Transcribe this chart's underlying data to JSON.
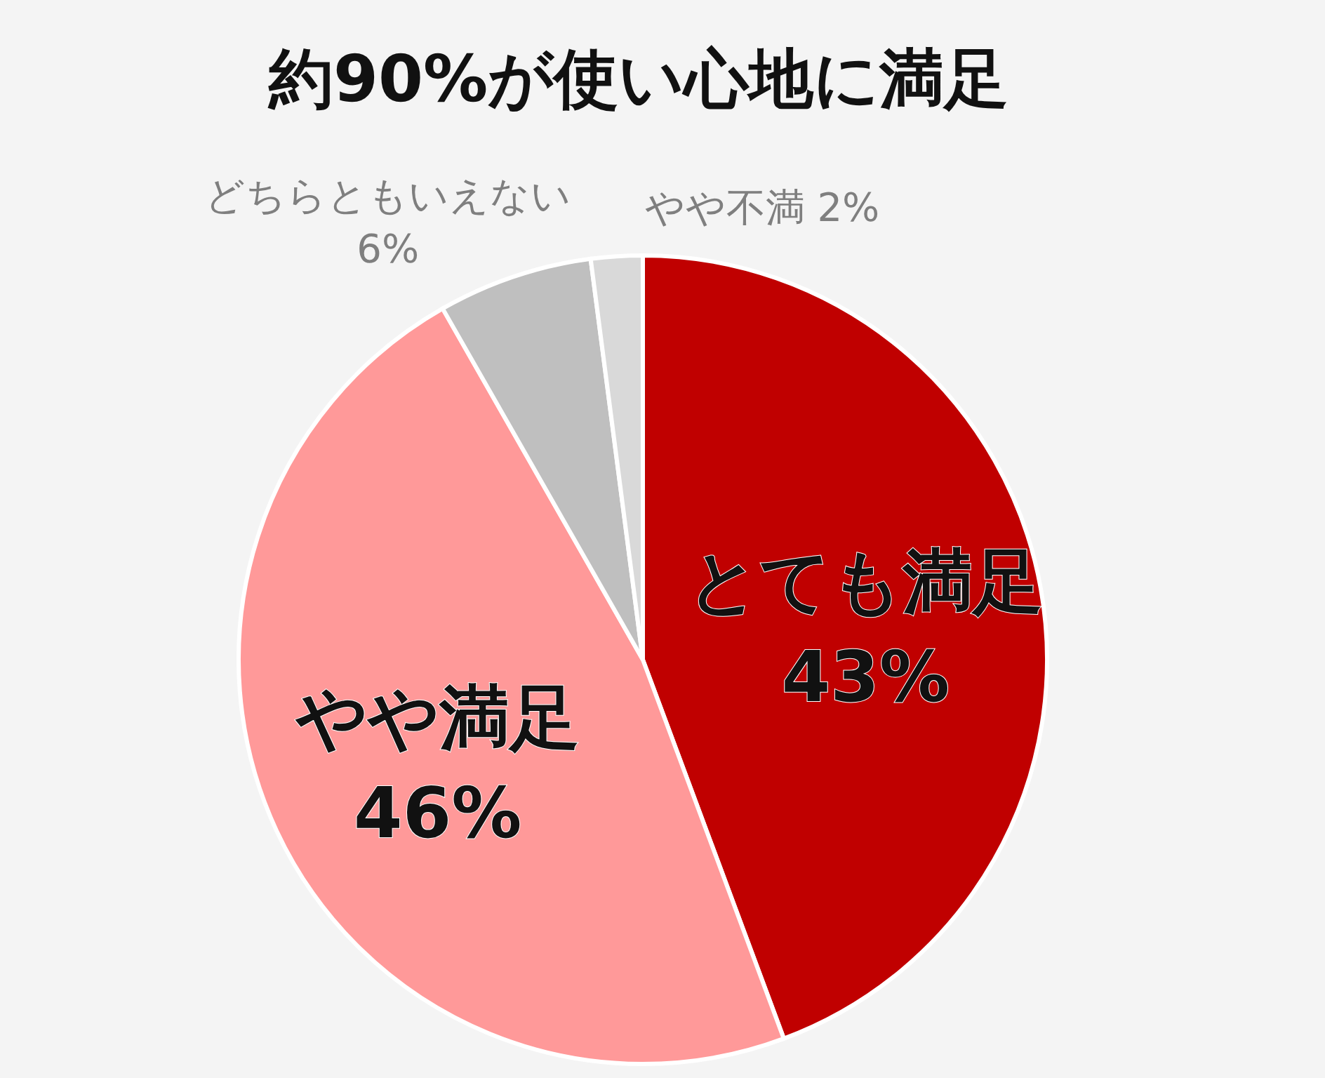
{
  "chart_data": {
    "type": "pie",
    "title": "約90%が使い心地に満足",
    "categories": [
      "とても満足",
      "やや満足",
      "どちらともいえない",
      "やや不満"
    ],
    "values": [
      43,
      46,
      6,
      2
    ],
    "value_labels": [
      "43%",
      "46%",
      "6%",
      "2%"
    ],
    "colors": [
      "#c00000",
      "#ff9999",
      "#bfbfbf",
      "#d9d9d9"
    ]
  }
}
